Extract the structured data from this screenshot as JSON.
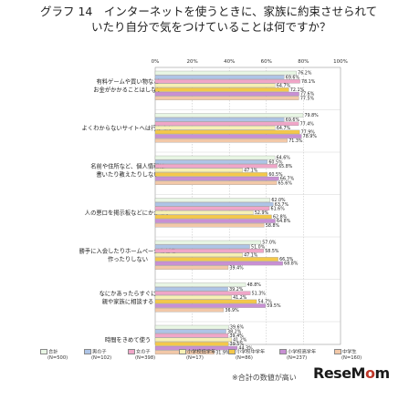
{
  "title": {
    "line1": "グラフ 14　インターネットを使うときに、家族に約束させられて",
    "line2": "いたり自分で気をつけていることは何ですか？"
  },
  "footnote": "※合計の数値が高い",
  "logo": {
    "part1": "ReseM",
    "part2": "o",
    "part3": "m"
  },
  "colors": [
    "#e8f6e4",
    "#aec4e6",
    "#f0a6c8",
    "#f6f0b4",
    "#f4c84a",
    "#c890d4",
    "#f2c8a8"
  ],
  "chart_data": {
    "type": "bar",
    "orientation": "horizontal",
    "x_ticks": [
      "0%",
      "20%",
      "40%",
      "60%",
      "80%",
      "100%"
    ],
    "xlim": [
      0,
      100
    ],
    "categories": [
      [
        "有料ゲームや買い物など",
        "お金がかかることはしない"
      ],
      [
        "よくわからないサイトへは行かない"
      ],
      [
        "名前や住所など、個人情報は",
        "書いたり教えたりしない"
      ],
      [
        "人の悪口を掲示板などにかかない"
      ],
      [
        "勝手に入会したりホームページなどを",
        "作ったりしない"
      ],
      [
        "なにかあったらすぐに",
        "親や家族に相談する"
      ],
      [
        "時間をきめて使う"
      ]
    ],
    "series": [
      {
        "name": "合計",
        "n": "(N=500)",
        "values": [
          76.2,
          79.8,
          64.6,
          62.0,
          57.0,
          48.8,
          39.6
        ]
      },
      {
        "name": "男の子",
        "n": "(N=102)",
        "values": [
          69.6,
          69.6,
          60.5,
          63.7,
          51.0,
          39.2,
          38.2
        ]
      },
      {
        "name": "女の子",
        "n": "(N=398)",
        "values": [
          78.1,
          77.4,
          65.8,
          61.6,
          58.5,
          51.3,
          39.4
        ]
      },
      {
        "name": "小学校低学年",
        "n": "(N=17)",
        "values": [
          64.7,
          64.7,
          47.1,
          52.9,
          47.1,
          41.2,
          41.2
        ]
      },
      {
        "name": "小学校中学年",
        "n": "(N=86)",
        "values": [
          72.1,
          77.9,
          60.5,
          62.8,
          66.3,
          54.7,
          39.5
        ]
      },
      {
        "name": "小学校高学年",
        "n": "(N=237)",
        "values": [
          77.6,
          78.9,
          66.7,
          64.8,
          68.8,
          59.5,
          44.3
        ]
      },
      {
        "name": "中学生",
        "n": "(N=160)",
        "values": [
          77.5,
          71.3,
          65.6,
          58.8,
          39.4,
          36.9,
          31.9
        ]
      }
    ]
  }
}
